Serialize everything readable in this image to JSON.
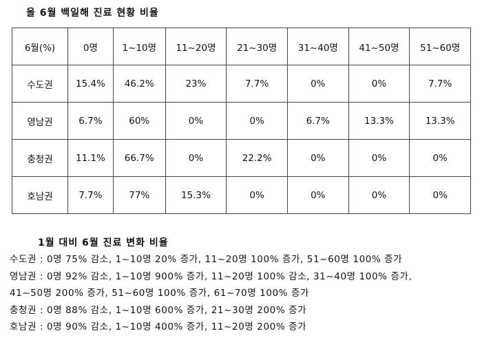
{
  "header": {
    "title": "올 6월 백일해 진료 현황 비율"
  },
  "table": {
    "columns": [
      "6월(%)",
      "0명",
      "1~10명",
      "11~20명",
      "21~30명",
      "31~40명",
      "41~50명",
      "51~60명"
    ],
    "rows": [
      [
        "수도권",
        "15.4%",
        "46.2%",
        "23%",
        "7.7%",
        "0%",
        "0%",
        "7.7%"
      ],
      [
        "영남권",
        "6.7%",
        "60%",
        "0%",
        "0%",
        "6.7%",
        "13.3%",
        "13.3%"
      ],
      [
        "충청권",
        "11.1%",
        "66.7%",
        "0%",
        "22.2%",
        "0%",
        "0%",
        "0%"
      ],
      [
        "호남권",
        "7.7%",
        "77%",
        "15.3%",
        "0%",
        "0%",
        "0%",
        "0%"
      ]
    ]
  },
  "changes": {
    "title": "1월 대비 6월 진료 변화 비율",
    "lines": [
      "수도권 : 0명 75% 감소, 1~10명 20% 증가, 11~20명 100% 증가, 51~60명 100% 증가",
      "영남권 : 0명 92% 감소, 1~10명 900% 증가, 11~20명 100% 감소, 31~40명 100% 증가,",
      "41~50명 200% 증가, 51~60명 100% 증가, 61~70명 100% 증가",
      "충청권 : 0명 88% 감소, 1~10명 600% 증가, 21~30명 200% 증가",
      "호남권 : 0명 90% 감소, 1~10명 400% 증가, 11~20명 200% 증가"
    ]
  }
}
